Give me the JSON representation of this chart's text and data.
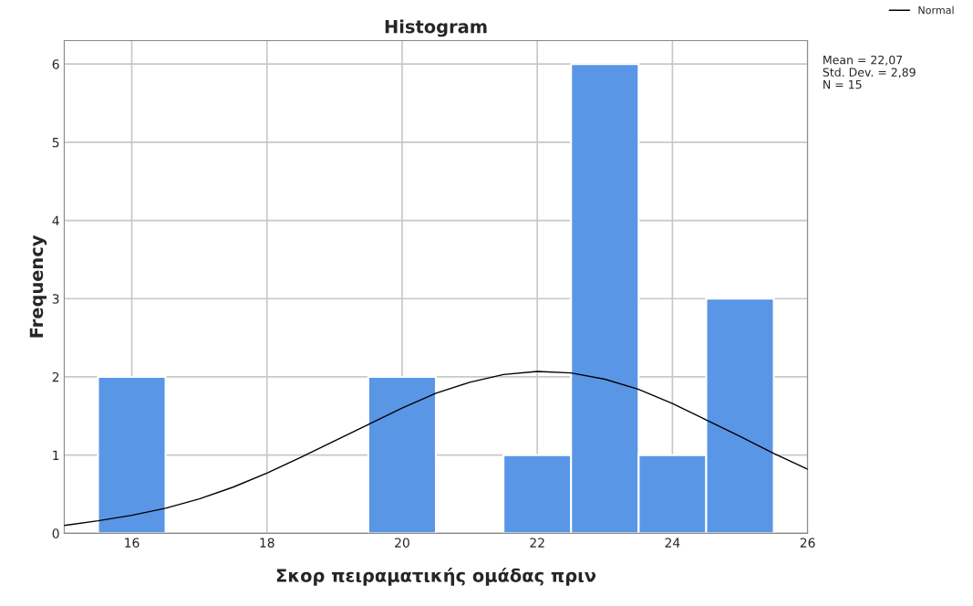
{
  "chart_data": {
    "type": "histogram",
    "title": "Histogram",
    "xlabel": "Σκορ πειραματικής ομάδας πριν",
    "ylabel": "Frequency",
    "bins": [
      15.5,
      16.5,
      17.5,
      18.5,
      19.5,
      20.5,
      21.5,
      22.5,
      23.5,
      24.5,
      25.5
    ],
    "values": [
      2,
      0,
      0,
      0,
      2,
      0,
      1,
      6,
      1,
      3
    ],
    "color": "#5a96e6",
    "series": [
      {
        "type": "line",
        "name": "Normal",
        "color": "#000000",
        "x": [
          15,
          15.5,
          16,
          16.5,
          17,
          17.5,
          18,
          18.5,
          19,
          19.5,
          20,
          20.5,
          21,
          21.5,
          22,
          22.5,
          23,
          23.5,
          24,
          24.5,
          25,
          25.5,
          26
        ],
        "values": [
          0.1,
          0.16,
          0.23,
          0.32,
          0.44,
          0.59,
          0.77,
          0.97,
          1.18,
          1.39,
          1.6,
          1.79,
          1.93,
          2.03,
          2.07,
          2.05,
          1.97,
          1.84,
          1.66,
          1.45,
          1.24,
          1.02,
          0.82
        ]
      }
    ],
    "xlim": [
      15,
      26
    ],
    "xticks": [
      16,
      18,
      20,
      22,
      24,
      26
    ],
    "ylim": [
      0,
      6.3
    ],
    "yticks": [
      0,
      1,
      2,
      3,
      4,
      5,
      6
    ],
    "grid": true,
    "legend": "top right",
    "annotations": [
      "Mean = 22,07",
      "Std. Dev. = 2,89",
      "N = 15"
    ]
  }
}
